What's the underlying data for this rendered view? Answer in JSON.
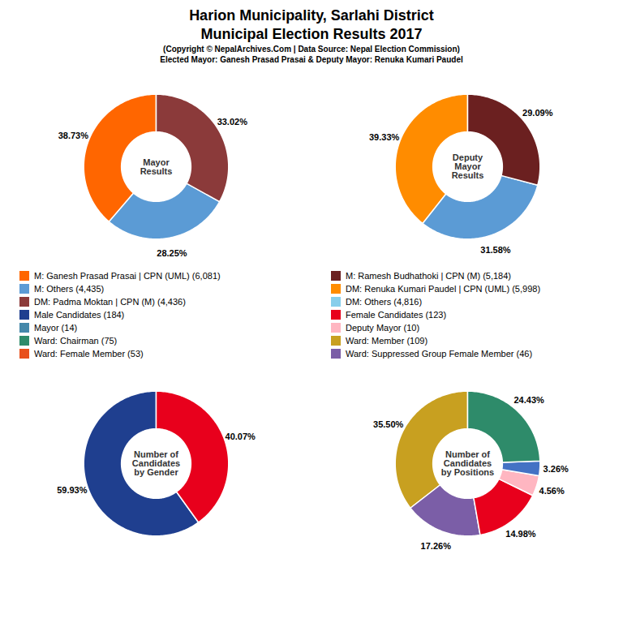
{
  "title": [
    "Harion Municipality, Sarlahi District",
    "Municipal Election Results 2017"
  ],
  "subtitle": [
    "(Copyright © NepalArchives.Com | Data Source: Nepal Election Commission)",
    "Elected Mayor: Ganesh Prasad Prasai & Deputy Mayor: Renuka Kumari Paudel"
  ],
  "chart_data": [
    {
      "type": "pie",
      "title": "Mayor\nResults",
      "values": [
        38.73,
        28.25,
        33.02
      ],
      "value_labels": [
        "38.73%",
        "28.25%",
        "33.02%"
      ],
      "colors": [
        "#FF6600",
        "#5B9BD5",
        "#8B3A3A"
      ],
      "data_labels": true
    },
    {
      "type": "pie",
      "title": "Deputy\nMayor\nResults",
      "values": [
        39.33,
        31.58,
        29.09
      ],
      "value_labels": [
        "39.33%",
        "31.58%",
        "29.09%"
      ],
      "colors": [
        "#FF8C00",
        "#5B9BD5",
        "#6B2020"
      ],
      "data_labels": true
    },
    {
      "type": "pie",
      "title": "Number of\nCandidates\nby Gender",
      "values": [
        59.93,
        40.07
      ],
      "value_labels": [
        "59.93%",
        "40.07%"
      ],
      "colors": [
        "#1F3F8F",
        "#E8001C"
      ],
      "data_labels": true
    },
    {
      "type": "pie",
      "title": "Number of\nCandidates\nby Positions",
      "values": [
        35.5,
        17.26,
        14.98,
        4.56,
        3.26,
        24.43
      ],
      "value_labels": [
        "35.50%",
        "17.26%",
        "14.98%",
        "4.56%",
        "3.26%",
        "24.43%"
      ],
      "colors": [
        "#C8A020",
        "#7B5EA7",
        "#E8001C",
        "#FFB6C1",
        "#4472C4",
        "#2E8B6A"
      ],
      "data_labels": true
    }
  ],
  "legend_entries": [
    [
      {
        "label": "M: Ganesh Prasad Prasai | CPN (UML) (6,081)",
        "color": "#FF6600"
      },
      {
        "label": "M: Others (4,435)",
        "color": "#5B9BD5"
      },
      {
        "label": "DM: Padma Moktan | CPN (M) (4,436)",
        "color": "#8B3A3A"
      },
      {
        "label": "Male Candidates (184)",
        "color": "#1F3F8F"
      },
      {
        "label": "Mayor (14)",
        "color": "#4488AA"
      },
      {
        "label": "Ward: Chairman (75)",
        "color": "#2E8B6A"
      },
      {
        "label": "Ward: Female Member (53)",
        "color": "#E8501C"
      }
    ],
    [
      {
        "label": "M: Ramesh Budhathoki | CPN (M) (5,184)",
        "color": "#6B2020"
      },
      {
        "label": "DM: Renuka Kumari Paudel | CPN (UML) (5,998)",
        "color": "#FF8C00"
      },
      {
        "label": "DM: Others (4,816)",
        "color": "#87CEEB"
      },
      {
        "label": "Female Candidates (123)",
        "color": "#E8001C"
      },
      {
        "label": "Deputy Mayor (10)",
        "color": "#FFB6C1"
      },
      {
        "label": "Ward: Member (109)",
        "color": "#C8A020"
      },
      {
        "label": "Ward: Suppressed Group Female Member (46)",
        "color": "#7B5EA7"
      }
    ]
  ]
}
